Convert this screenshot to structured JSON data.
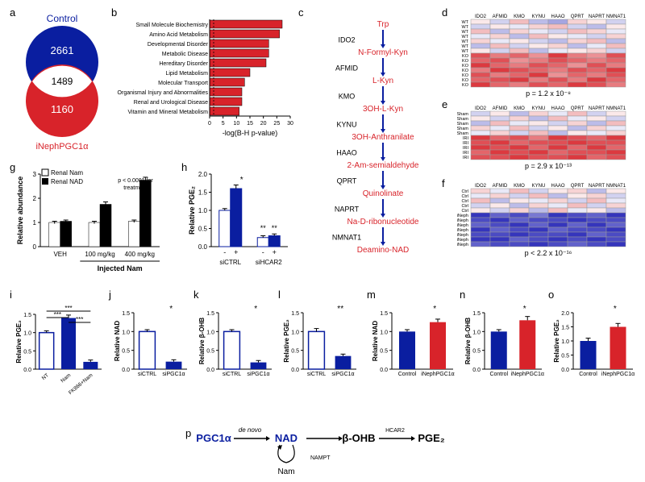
{
  "colors": {
    "blue": "#0a1ea0",
    "red": "#d8232a",
    "white": "#ffffff",
    "black": "#000000"
  },
  "labels": {
    "a": "a",
    "b": "b",
    "c": "c",
    "d": "d",
    "e": "e",
    "f": "f",
    "g": "g",
    "h": "h",
    "i": "i",
    "j": "j",
    "k": "k",
    "l": "l",
    "m": "m",
    "n": "n",
    "o": "o",
    "p": "p"
  },
  "venn": {
    "top": "Control",
    "top_n": "2661",
    "mid": "1489",
    "bot": "1160",
    "bot_label": "iNephPGC1α",
    "top_color": "#0a1ea0",
    "bot_color": "#d8232a",
    "overlap_color": "#ffffff"
  },
  "bar_horizontal": {
    "categories": [
      "Small Molecule Biochemistry",
      "Amino Acid Metabolism",
      "Developmental Disorder",
      "Metabolic Disease",
      "Hereditary Disorder",
      "Lipid Metabolism",
      "Molecular Transport",
      "Organismal Injury and Abnormalities",
      "Renal and Urological Disease",
      "Vitamin and Mineral Metabolism"
    ],
    "values": [
      27,
      26,
      22,
      22,
      21,
      15,
      13,
      12,
      12,
      11
    ],
    "xlim": [
      0,
      30
    ],
    "ticks": [
      0,
      5,
      10,
      15,
      20,
      25,
      30
    ],
    "xlabel": "-log(B-H p-value)",
    "bar_color": "#d8232a"
  },
  "pathway": {
    "genes": [
      "IDO2",
      "AFMID",
      "KMO",
      "KYNU",
      "HAAO",
      "QPRT",
      "NAPRT",
      "NMNAT1"
    ],
    "metabolites": [
      "Trp",
      "N-Formyl-Kyn",
      "L-Kyn",
      "3OH-L-Kyn",
      "3OH-Anthranilate",
      "2-Am-semialdehyde",
      "Quinolinate",
      "Na-D-ribonucleotide",
      "Deamino-NAD"
    ],
    "gene_color": "#000000",
    "met_color": "#d8232a",
    "arrow_color": "#0a1ea0"
  },
  "heatmaps": {
    "genes": [
      "IDO2",
      "AFMID",
      "KMO",
      "KYNU",
      "HAAO",
      "QPRT",
      "NAPRT",
      "NMNAT1"
    ],
    "d": {
      "rows": [
        "WT",
        "WT",
        "WT",
        "WT",
        "WT",
        "WT",
        "WT",
        "KO",
        "KO",
        "KO",
        "KO",
        "KO",
        "KO",
        "KO"
      ],
      "p": "p = 1.2 x 10⁻⁸",
      "data": [
        [
          0.1,
          -0.2,
          0.3,
          -0.3,
          -0.4,
          0.2,
          0.1,
          -0.2
        ],
        [
          -0.2,
          0.1,
          -0.1,
          0.2,
          0.3,
          -0.2,
          -0.3,
          0.1
        ],
        [
          0.3,
          -0.3,
          0.2,
          -0.1,
          -0.2,
          0.3,
          0.2,
          -0.1
        ],
        [
          -0.1,
          0.2,
          -0.3,
          0.3,
          0.1,
          -0.1,
          -0.2,
          0.2
        ],
        [
          0.2,
          -0.1,
          0.1,
          -0.2,
          -0.3,
          0.2,
          0.3,
          -0.3
        ],
        [
          -0.3,
          0.3,
          -0.2,
          0.1,
          0.2,
          -0.3,
          -0.1,
          0.3
        ],
        [
          0.1,
          -0.2,
          0.3,
          -0.3,
          -0.1,
          0.1,
          0.2,
          -0.2
        ],
        [
          0.8,
          0.6,
          0.7,
          0.5,
          0.9,
          0.6,
          0.5,
          0.8
        ],
        [
          0.7,
          0.8,
          0.5,
          0.6,
          0.8,
          0.7,
          0.6,
          0.7
        ],
        [
          0.9,
          0.7,
          0.6,
          0.8,
          0.7,
          0.5,
          0.8,
          0.6
        ],
        [
          0.6,
          0.9,
          0.8,
          0.7,
          0.6,
          0.8,
          0.7,
          0.9
        ],
        [
          0.8,
          0.6,
          0.7,
          0.9,
          0.5,
          0.7,
          0.6,
          0.8
        ],
        [
          0.7,
          0.8,
          0.9,
          0.6,
          0.8,
          0.6,
          0.9,
          0.7
        ],
        [
          0.9,
          0.7,
          0.6,
          0.8,
          0.7,
          0.9,
          0.8,
          0.6
        ]
      ]
    },
    "e": {
      "rows": [
        "Sham",
        "Sham",
        "Sham",
        "Sham",
        "Sham",
        "IRI",
        "IRI",
        "IRI",
        "IRI",
        "IRI"
      ],
      "p": "p = 2.9 x 10⁻¹³",
      "data": [
        [
          -0.2,
          0.1,
          -0.3,
          0.2,
          -0.1,
          0.3,
          -0.2,
          0.1
        ],
        [
          0.1,
          -0.2,
          0.2,
          -0.3,
          0.3,
          -0.1,
          0.1,
          -0.2
        ],
        [
          -0.3,
          0.3,
          -0.1,
          0.1,
          -0.2,
          0.2,
          -0.3,
          0.3
        ],
        [
          0.2,
          -0.1,
          0.3,
          -0.2,
          0.1,
          -0.3,
          0.2,
          -0.1
        ],
        [
          -0.1,
          0.2,
          -0.2,
          0.3,
          -0.3,
          0.1,
          -0.1,
          0.2
        ],
        [
          0.9,
          0.7,
          0.8,
          0.6,
          0.9,
          0.8,
          0.7,
          0.9
        ],
        [
          0.8,
          0.9,
          0.7,
          0.8,
          0.8,
          0.9,
          0.8,
          0.8
        ],
        [
          0.9,
          0.8,
          0.9,
          0.7,
          0.9,
          0.7,
          0.9,
          0.7
        ],
        [
          0.7,
          0.9,
          0.8,
          0.9,
          0.7,
          0.8,
          0.8,
          0.9
        ],
        [
          0.8,
          0.8,
          0.9,
          0.8,
          0.8,
          0.9,
          0.7,
          0.8
        ]
      ]
    },
    "f": {
      "rows": [
        "Ctrl",
        "Ctrl",
        "Ctrl",
        "Ctrl",
        "Ctrl",
        "iNeph",
        "iNeph",
        "iNeph",
        "iNeph",
        "iNeph",
        "iNeph",
        "iNeph"
      ],
      "p": "p < 2.2 x 10⁻¹⁶",
      "data": [
        [
          0.2,
          -0.1,
          0.3,
          -0.2,
          0.1,
          0.2,
          -0.3,
          0.1
        ],
        [
          -0.1,
          0.2,
          -0.2,
          0.3,
          -0.3,
          0.1,
          0.2,
          -0.2
        ],
        [
          0.3,
          -0.3,
          0.1,
          -0.1,
          0.2,
          -0.2,
          0.3,
          -0.1
        ],
        [
          -0.2,
          0.1,
          -0.3,
          0.2,
          -0.1,
          0.3,
          -0.2,
          0.2
        ],
        [
          0.1,
          -0.2,
          0.2,
          -0.3,
          0.3,
          -0.1,
          0.1,
          -0.3
        ],
        [
          -0.9,
          -0.7,
          -0.8,
          -0.6,
          -0.9,
          -0.8,
          -0.7,
          -0.9
        ],
        [
          -0.8,
          -0.9,
          -0.7,
          -0.8,
          -0.8,
          -0.9,
          -0.8,
          -0.8
        ],
        [
          -0.7,
          -0.8,
          -0.9,
          -0.7,
          -0.9,
          -0.7,
          -0.9,
          -0.7
        ],
        [
          -0.9,
          -0.7,
          -0.8,
          -0.9,
          -0.7,
          -0.8,
          -0.8,
          -0.9
        ],
        [
          -0.8,
          -0.8,
          -0.9,
          -0.8,
          -0.8,
          -0.9,
          -0.7,
          -0.8
        ],
        [
          -0.9,
          -0.9,
          -0.7,
          -0.8,
          -0.9,
          -0.8,
          -0.9,
          -0.8
        ],
        [
          -0.7,
          -0.8,
          -0.8,
          -0.9,
          -0.8,
          -0.7,
          -0.8,
          -0.9
        ]
      ]
    }
  },
  "g": {
    "legend": [
      "Renal Nam",
      "Renal NAD"
    ],
    "groups": [
      "VEH",
      "100 mg/kg",
      "400 mg/kg"
    ],
    "group_label": "Injected Nam",
    "ylabel": "Relative abundance",
    "yticks": [
      0,
      1,
      2,
      3
    ],
    "data": [
      [
        1.0,
        1.05
      ],
      [
        1.0,
        1.75
      ],
      [
        1.05,
        2.75
      ]
    ],
    "err": [
      [
        0.05,
        0.05
      ],
      [
        0.05,
        0.1
      ],
      [
        0.05,
        0.12
      ]
    ],
    "note": "p < 0.0001 for\ntreatment",
    "colors": [
      "#ffffff",
      "#000000"
    ]
  },
  "h": {
    "groups": [
      "siCTRL",
      "siHCAR2"
    ],
    "subs": [
      "-",
      "+"
    ],
    "ylabel": "Relative PGE₂",
    "yticks": [
      0.0,
      0.5,
      1.0,
      1.5,
      2.0
    ],
    "data": [
      [
        1.0,
        1.6
      ],
      [
        0.25,
        0.3
      ]
    ],
    "err": [
      [
        0.05,
        0.1
      ],
      [
        0.05,
        0.05
      ]
    ],
    "colors": [
      "#ffffff",
      "#0a1ea0"
    ],
    "sig": [
      "*",
      "**",
      "**"
    ]
  },
  "i": {
    "ylabel": "Relative PGE₂",
    "cats": [
      "NT",
      "Nam",
      "FK866+Nam"
    ],
    "yticks": [
      0.0,
      0.5,
      1.0,
      1.5
    ],
    "data": [
      1.0,
      1.4,
      0.2
    ],
    "err": [
      0.05,
      0.08,
      0.05
    ],
    "color": "#0a1ea0",
    "sig": "***"
  },
  "j": {
    "ylabel": "Relative NAD",
    "cats": [
      "siCTRL",
      "siPGC1α"
    ],
    "yticks": [
      0.0,
      0.5,
      1.0,
      1.5
    ],
    "data": [
      1.0,
      0.2
    ],
    "err": [
      0.05,
      0.05
    ],
    "color": "#0a1ea0",
    "sig": "*"
  },
  "k": {
    "ylabel": "Relative β-OHB",
    "cats": [
      "siCTRL",
      "siPGC1α"
    ],
    "yticks": [
      0.0,
      0.5,
      1.0,
      1.5
    ],
    "data": [
      1.0,
      0.18
    ],
    "err": [
      0.05,
      0.05
    ],
    "color": "#0a1ea0",
    "sig": "*"
  },
  "l": {
    "ylabel": "Relative PGE₂",
    "cats": [
      "siCTRL",
      "siPGC1α"
    ],
    "yticks": [
      0.0,
      0.5,
      1.0,
      1.5
    ],
    "data": [
      1.0,
      0.35
    ],
    "err": [
      0.08,
      0.05
    ],
    "color": "#0a1ea0",
    "sig": "**"
  },
  "m": {
    "ylabel": "Relative NAD",
    "cats": [
      "Control",
      "iNephPGC1α"
    ],
    "yticks": [
      0.0,
      0.5,
      1.0,
      1.5
    ],
    "data": [
      1.0,
      1.25
    ],
    "err": [
      0.05,
      0.08
    ],
    "colors": [
      "#0a1ea0",
      "#d8232a"
    ],
    "sig": "*"
  },
  "n": {
    "ylabel": "Relative β-OHB",
    "cats": [
      "Control",
      "iNephPGC1α"
    ],
    "yticks": [
      0.0,
      0.5,
      1.0,
      1.5
    ],
    "data": [
      1.0,
      1.3
    ],
    "err": [
      0.05,
      0.1
    ],
    "colors": [
      "#0a1ea0",
      "#d8232a"
    ],
    "sig": "*"
  },
  "o": {
    "ylabel": "Relative PGE₂",
    "cats": [
      "Control",
      "iNephPGC1α"
    ],
    "yticks": [
      0.0,
      0.5,
      1.0,
      1.5,
      2.0
    ],
    "data": [
      1.0,
      1.5
    ],
    "err": [
      0.1,
      0.12
    ],
    "colors": [
      "#0a1ea0",
      "#d8232a"
    ],
    "sig": "*"
  },
  "p": {
    "nodes": [
      "PGC1α",
      "NAD",
      "β-OHB",
      "PGE₂"
    ],
    "annotations": [
      "de novo",
      "HCAR2",
      "NAMPT",
      "Nam"
    ],
    "node_colors": {
      "PGC1α": "#0a1ea0",
      "NAD": "#0a1ea0",
      "β-OHB": "#000000",
      "PGE₂": "#000000"
    }
  }
}
